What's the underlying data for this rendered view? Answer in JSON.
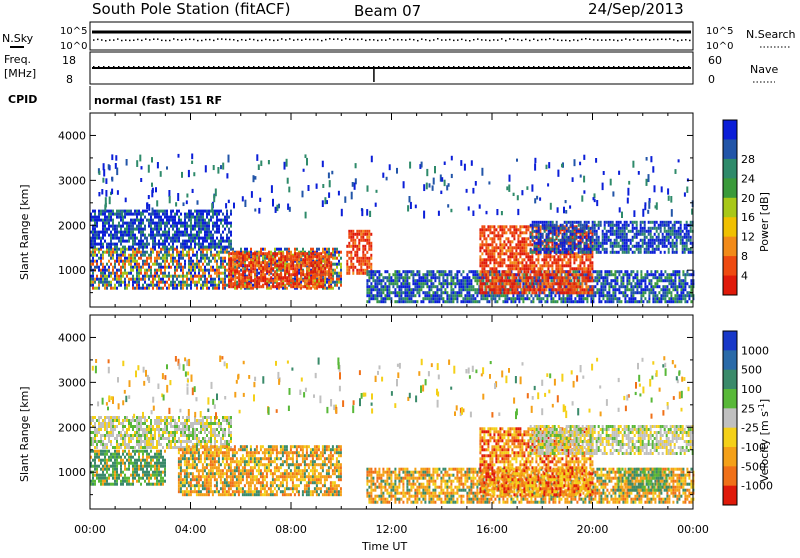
{
  "header": {
    "station": "South Pole Station (fitACF)",
    "beam": "Beam 07",
    "date": "24/Sep/2013"
  },
  "sky_panel": {
    "left_label": "N.Sky",
    "right_label": "N.Search",
    "left_ticks": [
      "10^5",
      "10^0"
    ],
    "right_ticks": [
      "10^5",
      "10^0"
    ]
  },
  "freq_panel": {
    "left_label_line1": "Freq.",
    "left_label_line2": "[MHz]",
    "left_ticks": [
      "18",
      "8"
    ],
    "right_label": "Nave",
    "right_ticks": [
      "60",
      "0"
    ]
  },
  "cpid": {
    "label": "CPID",
    "text": "normal (fast) 151 RF"
  },
  "chart_data": [
    {
      "type": "heatmap",
      "title": "Power",
      "ylabel": "Slant Range [km]",
      "xlabel": "Time UT",
      "x_range": [
        "00:00",
        "24:00"
      ],
      "ylim": [
        180,
        4500
      ],
      "x_ticks": [
        "00:00",
        "04:00",
        "08:00",
        "12:00",
        "16:00",
        "20:00",
        "00:00"
      ],
      "y_ticks": [
        1000,
        2000,
        3000,
        4000
      ],
      "colorbar_label": "Power [dB]",
      "colorbar_ticks": [
        "4",
        "8",
        "12",
        "16",
        "20",
        "24",
        "28"
      ],
      "colorbar_colors": [
        "#0b1ed8",
        "#2255a8",
        "#2e8a6a",
        "#3a9a3a",
        "#a8c818",
        "#f0c000",
        "#f28a18",
        "#ee4a10",
        "#e01a0a"
      ],
      "echo_regions": [
        {
          "t0": 0.0,
          "t1": 10.0,
          "r0": 600,
          "r1": 1500,
          "level": "moderate-high"
        },
        {
          "t0": 5.5,
          "t1": 9.6,
          "r0": 650,
          "r1": 1400,
          "level": "high"
        },
        {
          "t0": 0.0,
          "t1": 5.6,
          "r0": 1500,
          "r1": 2350,
          "level": "low"
        },
        {
          "t0": 10.2,
          "t1": 11.2,
          "r0": 900,
          "r1": 1900,
          "level": "high"
        },
        {
          "t0": 11.0,
          "t1": 24.0,
          "r0": 300,
          "r1": 1000,
          "level": "low-moderate"
        },
        {
          "t0": 15.5,
          "t1": 20.0,
          "r0": 500,
          "r1": 2000,
          "level": "high"
        },
        {
          "t0": 17.5,
          "t1": 24.0,
          "r0": 1400,
          "r1": 2100,
          "level": "low"
        }
      ]
    },
    {
      "type": "heatmap",
      "title": "Velocity",
      "ylabel": "Slant Range [km]",
      "xlabel": "Time UT",
      "x_range": [
        "00:00",
        "24:00"
      ],
      "ylim": [
        180,
        4500
      ],
      "x_ticks": [
        "00:00",
        "04:00",
        "08:00",
        "12:00",
        "16:00",
        "20:00",
        "00:00"
      ],
      "y_ticks": [
        1000,
        2000,
        3000,
        4000
      ],
      "colorbar_label": "Velocity [m s^-1]",
      "colorbar_ticks": [
        "1000",
        "500",
        "100",
        "25",
        "-25",
        "-100",
        "-500",
        "-1000"
      ],
      "colorbar_colors": [
        "#1838c8",
        "#2a6aa8",
        "#3a8a6a",
        "#58b838",
        "#c0c0c0",
        "#f4d018",
        "#f4a018",
        "#f07018",
        "#e01a0a"
      ],
      "echo_regions": [
        {
          "t0": 0.0,
          "t1": 3.0,
          "r0": 700,
          "r1": 1500,
          "velocity": -20,
          "note": "green"
        },
        {
          "t0": 0.0,
          "t1": 5.6,
          "r0": 1550,
          "r1": 2250,
          "velocity": 0,
          "note": "grey"
        },
        {
          "t0": 3.5,
          "t1": 10.0,
          "r0": 500,
          "r1": 1600,
          "velocity": -250
        },
        {
          "t0": 11.0,
          "t1": 24.0,
          "r0": 300,
          "r1": 1100,
          "velocity": -250
        },
        {
          "t0": 15.5,
          "t1": 20.0,
          "r0": 500,
          "r1": 2000,
          "velocity": -400
        },
        {
          "t0": 17.5,
          "t1": 24.0,
          "r0": 1400,
          "r1": 2050,
          "velocity": 0,
          "note": "grey"
        },
        {
          "t0": 21.0,
          "t1": 23.0,
          "r0": 600,
          "r1": 1100,
          "velocity": 200,
          "note": "green"
        }
      ]
    }
  ]
}
